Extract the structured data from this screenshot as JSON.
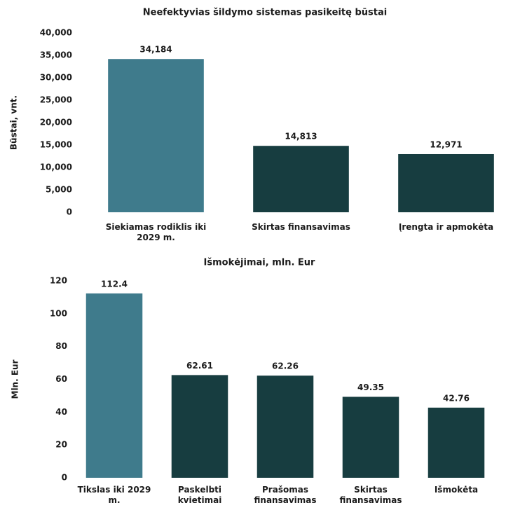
{
  "chart_data": [
    {
      "type": "bar",
      "title": "Neefektyvias šildymo sistemas pasikeitę būstai",
      "ylabel": "Būstai, vnt.",
      "categories": [
        "Siekiamas rodiklis iki 2029 m.",
        "Skirtas finansavimas",
        "Įrengta ir apmokėta"
      ],
      "values": [
        34184,
        14813,
        12971
      ],
      "value_labels": [
        "34,184",
        "14,813",
        "12,971"
      ],
      "colors": [
        "#3f7b8c",
        "#173d40",
        "#173d40"
      ],
      "ylim": [
        0,
        40000
      ],
      "yticks": [
        0,
        {
          "value": 5000,
          "label": "5,000"
        },
        {
          "value": 10000,
          "label": "10,000"
        },
        {
          "value": 15000,
          "label": "15,000"
        },
        {
          "value": 20000,
          "label": "20,000"
        },
        {
          "value": 25000,
          "label": "25,000"
        },
        {
          "value": 30000,
          "label": "30,000"
        },
        {
          "value": 35000,
          "label": "35,000"
        },
        {
          "value": 40000,
          "label": "40,000"
        }
      ],
      "grid": false
    },
    {
      "type": "bar",
      "title": "Išmokėjimai, mln. Eur",
      "ylabel": "Mln. Eur",
      "categories": [
        "Tikslas iki 2029 m.",
        "Paskelbti kvietimai",
        "Prašomas finansavimas",
        "Skirtas finansavimas",
        "Išmokėta"
      ],
      "values": [
        112.4,
        62.61,
        62.26,
        49.35,
        42.76
      ],
      "colors": [
        "#3f7b8c",
        "#173d40",
        "#173d40",
        "#173d40",
        "#173d40"
      ],
      "ylim": [
        0,
        120
      ],
      "yticks": [
        0,
        20,
        40,
        60,
        80,
        100,
        120
      ],
      "grid": false
    }
  ]
}
